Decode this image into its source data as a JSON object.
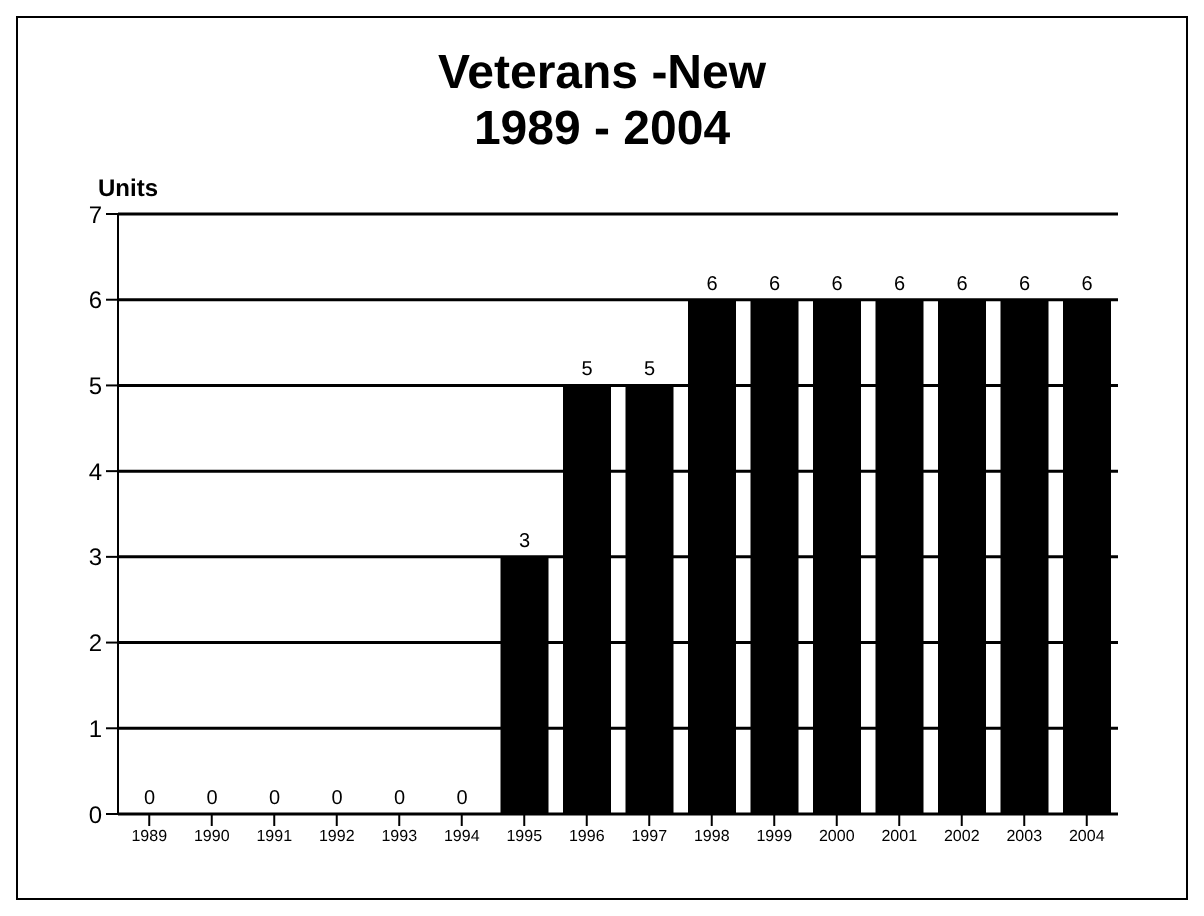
{
  "chart_data": {
    "type": "bar",
    "title": "Veterans -New\n1989 - 2004",
    "ylabel": "Units",
    "categories": [
      "1989",
      "1990",
      "1991",
      "1992",
      "1993",
      "1994",
      "1995",
      "1996",
      "1997",
      "1998",
      "1999",
      "2000",
      "2001",
      "2002",
      "2003",
      "2004"
    ],
    "values": [
      0,
      0,
      0,
      0,
      0,
      0,
      3,
      5,
      5,
      6,
      6,
      6,
      6,
      6,
      6,
      6
    ],
    "color": "#000000",
    "ylim": [
      0,
      7
    ],
    "yticks": [
      0,
      1,
      2,
      3,
      4,
      5,
      6,
      7
    ],
    "grid": "y",
    "data_labels": true
  }
}
